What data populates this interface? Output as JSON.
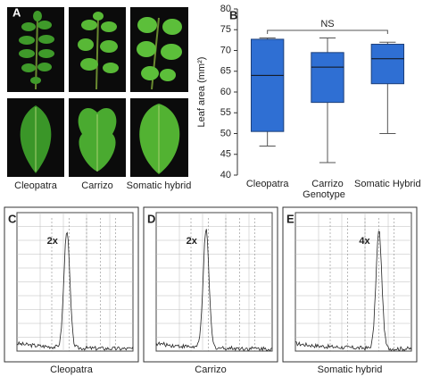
{
  "panel_a": {
    "label": "A",
    "captions": [
      "Cleopatra",
      "Carrizo",
      "Somatic hybrid"
    ]
  },
  "chart_data": {
    "type": "box",
    "panel_label": "B",
    "x_label": "Genotype",
    "y_label": "Leaf area (mm²)",
    "categories": [
      "Cleopatra",
      "Carrizo",
      "Somatic Hybrid"
    ],
    "min": [
      47,
      43,
      50
    ],
    "q1": [
      50.5,
      57.5,
      62
    ],
    "median": [
      64,
      66,
      68
    ],
    "q3": [
      72.7,
      69.5,
      71.5
    ],
    "max": [
      73,
      73,
      72
    ],
    "color": "#2f6fd3",
    "ylim": [
      40,
      80
    ],
    "yticks": [
      40,
      45,
      50,
      55,
      60,
      65,
      70,
      75,
      80
    ],
    "annotation": "NS"
  },
  "histograms": [
    {
      "label": "C",
      "ploidy": "2x",
      "caption": "Cleopatra"
    },
    {
      "label": "D",
      "ploidy": "2x",
      "caption": "Carrizo"
    },
    {
      "label": "E",
      "ploidy": "4x",
      "caption": "Somatic hybrid"
    }
  ]
}
